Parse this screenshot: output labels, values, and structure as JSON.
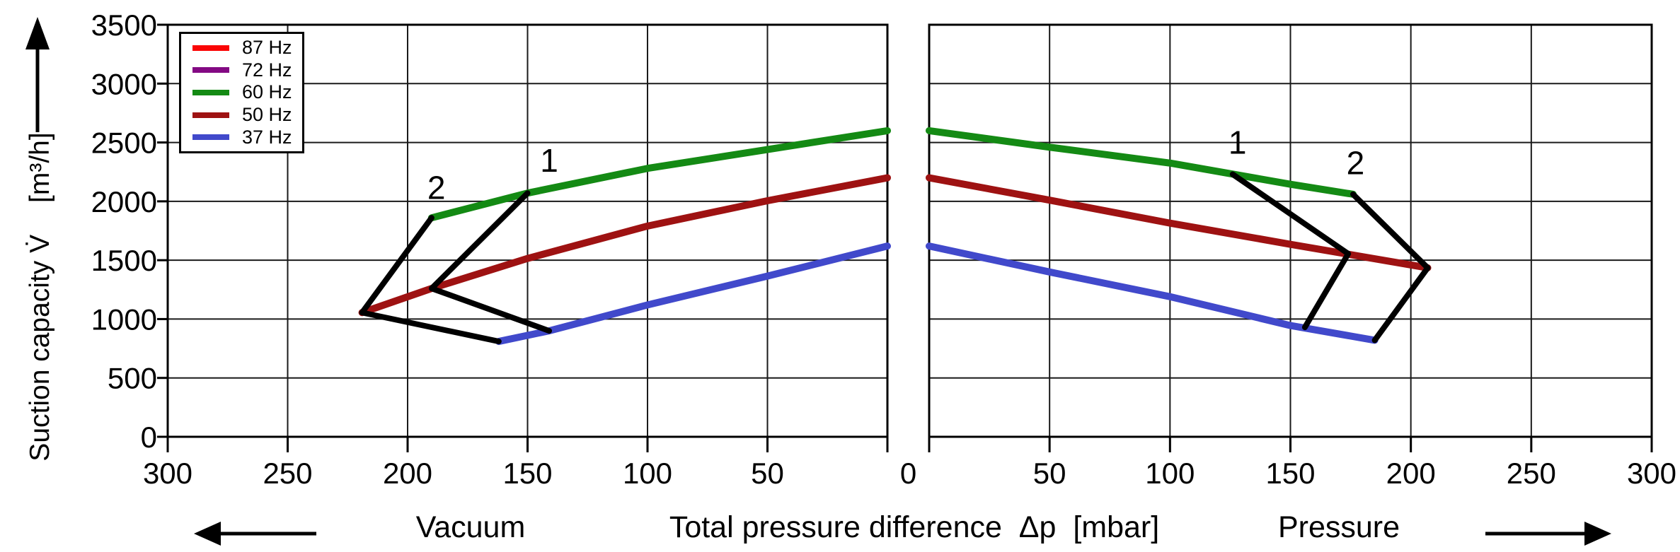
{
  "figure": {
    "y_axis": {
      "label_main": "Suction capacity",
      "label_symbol": "V̇",
      "label_unit": "[m³/h]",
      "tick_values": [
        3500,
        3000,
        2500,
        2000,
        1500,
        1000,
        500,
        0
      ],
      "min": 0,
      "max": 3500,
      "step": 500
    },
    "x_axis": {
      "title": "Total pressure difference  Δp  [mbar]",
      "left_label": "Vacuum",
      "right_label": "Pressure",
      "left_tick_values": [
        300,
        250,
        200,
        150,
        100,
        50
      ],
      "zero_label": "0",
      "right_tick_values": [
        50,
        100,
        150,
        200,
        250,
        300
      ],
      "min": 0,
      "max": 300,
      "step": 50
    },
    "legend": {
      "items": [
        {
          "label": "87 Hz",
          "color": "#fa0505"
        },
        {
          "label": "72 Hz",
          "color": "#830983"
        },
        {
          "label": "60 Hz",
          "color": "#148a14"
        },
        {
          "label": "50 Hz",
          "color": "#9e1212"
        },
        {
          "label": "37 Hz",
          "color": "#4149cb"
        }
      ]
    },
    "colors": {
      "grid": "#1a1a1a",
      "frame": "#000000",
      "envelope": "#000000"
    }
  },
  "chart_data": [
    {
      "type": "line",
      "side": "vacuum",
      "x_reversed": true,
      "xlim": [
        300,
        0
      ],
      "ylim": [
        0,
        3500
      ],
      "grid": {
        "x_step": 50,
        "y_step": 500
      },
      "series": [
        {
          "name": "60 Hz",
          "color": "#148a14",
          "points": [
            [
              190,
              1860
            ],
            [
              150,
              2070
            ],
            [
              100,
              2280
            ],
            [
              50,
              2440
            ],
            [
              0,
              2600
            ]
          ]
        },
        {
          "name": "50 Hz",
          "color": "#9e1212",
          "points": [
            [
              219,
              1055
            ],
            [
              190,
              1260
            ],
            [
              150,
              1515
            ],
            [
              100,
              1790
            ],
            [
              50,
              2005
            ],
            [
              0,
              2200
            ]
          ]
        },
        {
          "name": "37 Hz",
          "color": "#4149cb",
          "points": [
            [
              162,
              810
            ],
            [
              141,
              900
            ],
            [
              100,
              1120
            ],
            [
              50,
              1365
            ],
            [
              0,
              1620
            ]
          ]
        }
      ],
      "operating_ranges": [
        {
          "label": "1",
          "points": [
            [
              150,
              2070
            ],
            [
              190,
              1260
            ],
            [
              141,
              900
            ]
          ],
          "label_at": [
            141,
            2350
          ]
        },
        {
          "label": "2",
          "points": [
            [
              190,
              1860
            ],
            [
              219,
              1055
            ],
            [
              162,
              810
            ]
          ],
          "label_at": [
            188,
            2120
          ]
        }
      ]
    },
    {
      "type": "line",
      "side": "pressure",
      "x_reversed": false,
      "xlim": [
        0,
        300
      ],
      "ylim": [
        0,
        3500
      ],
      "grid": {
        "x_step": 50,
        "y_step": 500
      },
      "series": [
        {
          "name": "60 Hz",
          "color": "#148a14",
          "points": [
            [
              0,
              2600
            ],
            [
              50,
              2460
            ],
            [
              100,
              2325
            ],
            [
              150,
              2145
            ],
            [
              176,
              2060
            ]
          ]
        },
        {
          "name": "50 Hz",
          "color": "#9e1212",
          "points": [
            [
              0,
              2200
            ],
            [
              50,
              2010
            ],
            [
              100,
              1815
            ],
            [
              150,
              1635
            ],
            [
              207,
              1435
            ]
          ]
        },
        {
          "name": "37 Hz",
          "color": "#4149cb",
          "points": [
            [
              0,
              1620
            ],
            [
              50,
              1400
            ],
            [
              100,
              1190
            ],
            [
              150,
              945
            ],
            [
              185,
              820
            ]
          ]
        }
      ],
      "operating_ranges": [
        {
          "label": "1",
          "points": [
            [
              126,
              2230
            ],
            [
              174,
              1555
            ],
            [
              156,
              930
            ]
          ],
          "label_at": [
            128,
            2505
          ]
        },
        {
          "label": "2",
          "points": [
            [
              176,
              2060
            ],
            [
              207,
              1435
            ],
            [
              185,
              820
            ]
          ],
          "label_at": [
            177,
            2330
          ]
        }
      ]
    }
  ]
}
